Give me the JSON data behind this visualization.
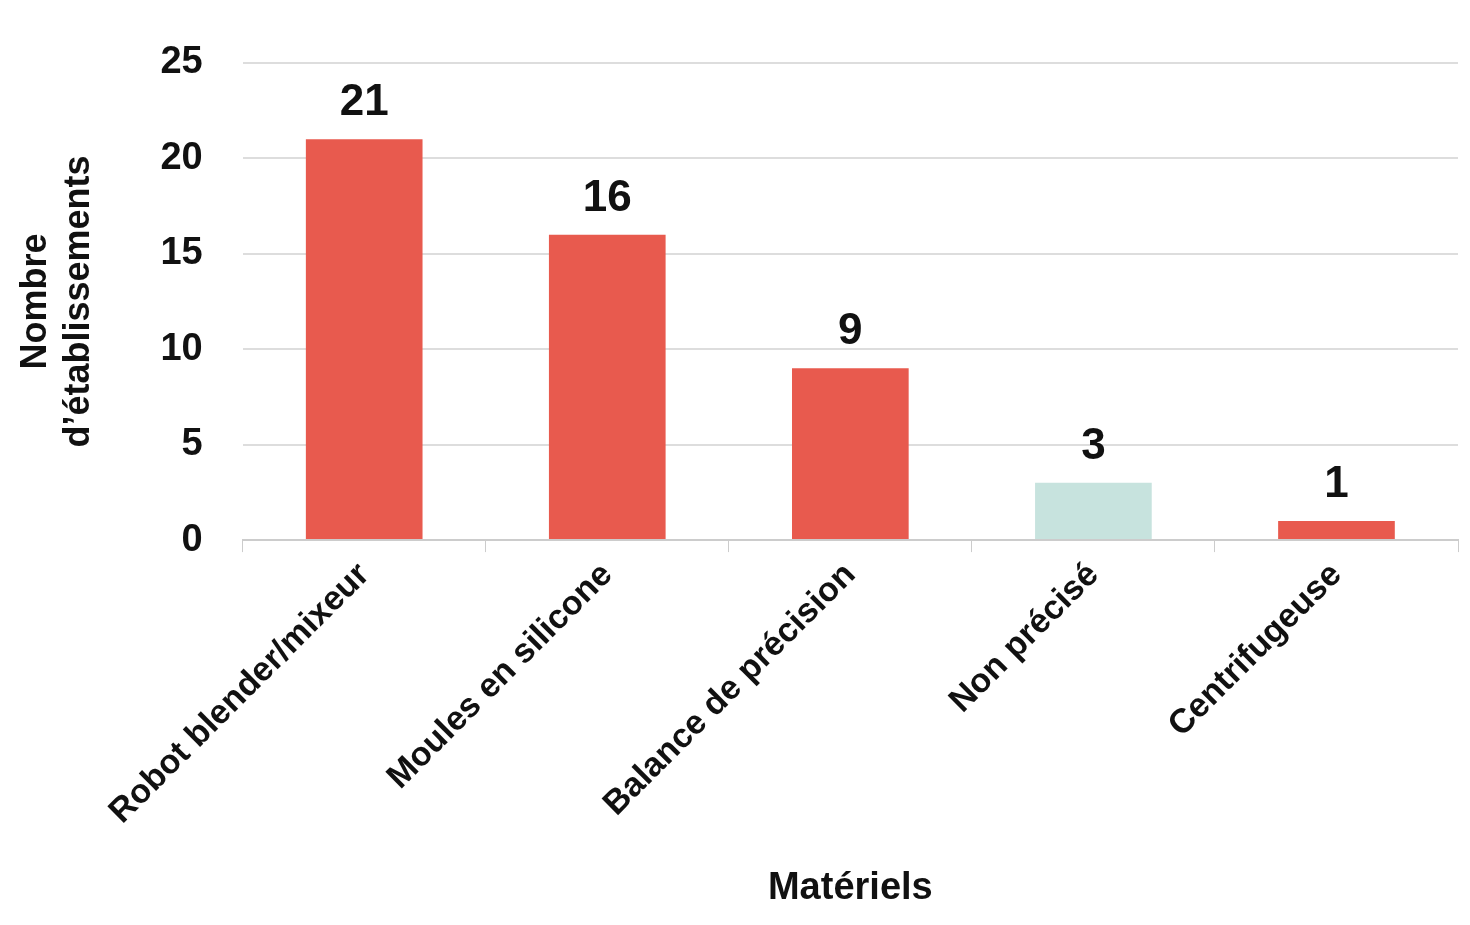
{
  "chart_data": {
    "type": "bar",
    "xlabel": "Matériels",
    "ylabel": "Nombre\nd’établissements",
    "categories": [
      "Robot blender/mixeur",
      "Moules en silicone",
      "Balance de précision",
      "Non précisé",
      "Centrifugeuse"
    ],
    "values": [
      21,
      16,
      9,
      3,
      1
    ],
    "colors": [
      "#e85a4e",
      "#e85a4e",
      "#e85a4e",
      "#c7e3de",
      "#e85a4e"
    ],
    "ylim": [
      0,
      25
    ],
    "yticks": [
      0,
      5,
      10,
      15,
      20,
      25
    ],
    "grid": "y",
    "data_labels": true
  }
}
